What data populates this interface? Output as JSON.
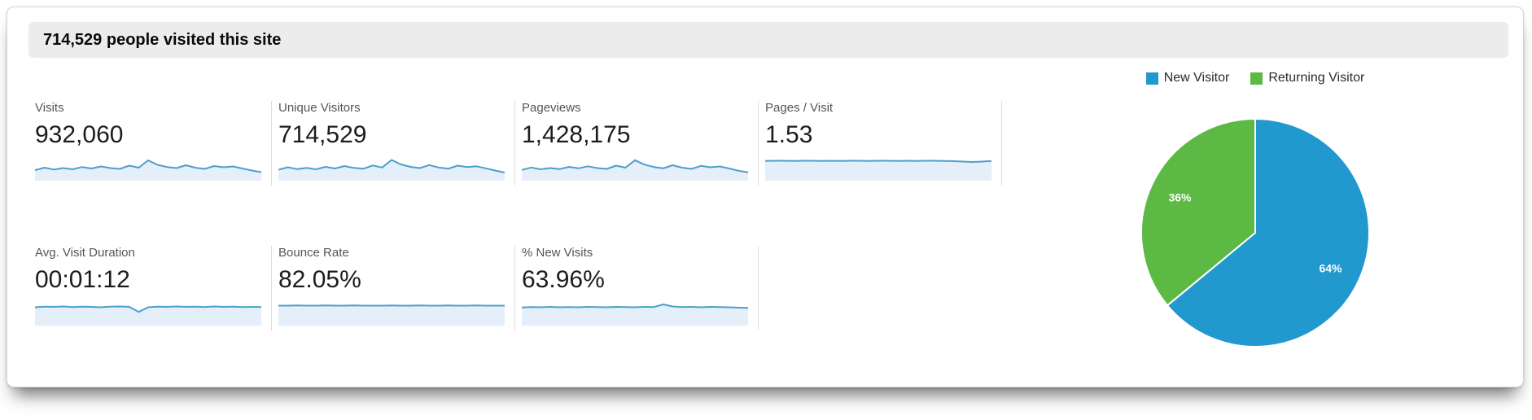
{
  "header": {
    "title": "714,529 people visited this site"
  },
  "legend": [
    {
      "label": "New Visitor",
      "color": "#2199CE"
    },
    {
      "label": "Returning Visitor",
      "color": "#5BB944"
    }
  ],
  "metrics": {
    "rows": [
      [
        {
          "label": "Visits",
          "value": "932,060"
        },
        {
          "label": "Unique Visitors",
          "value": "714,529"
        },
        {
          "label": "Pageviews",
          "value": "1,428,175"
        },
        {
          "label": "Pages / Visit",
          "value": "1.53"
        }
      ],
      [
        {
          "label": "Avg. Visit Duration",
          "value": "00:01:12"
        },
        {
          "label": "Bounce Rate",
          "value": "82.05%"
        },
        {
          "label": "% New Visits",
          "value": "63.96%"
        }
      ]
    ]
  },
  "chart_data": [
    {
      "type": "pie",
      "title": "New vs Returning Visitors",
      "labels": [
        "New Visitor",
        "Returning Visitor"
      ],
      "values": [
        64,
        36
      ],
      "data_labels": [
        "64%",
        "36%"
      ],
      "colors": [
        "#2199CE",
        "#5BB944"
      ],
      "legend_position": "top",
      "start_angle": "12 o'clock, clockwise",
      "slice_border_color": "#ffffff"
    },
    {
      "type": "area",
      "title": "Metric sparklines (unlabeled mini trend charts, values normalized 0-1)",
      "line_color": "#4E9FCC",
      "fill_color": "#E4EFF9",
      "grid": false,
      "series": [
        {
          "name": "Visits",
          "values": [
            0.4,
            0.52,
            0.43,
            0.5,
            0.44,
            0.55,
            0.48,
            0.58,
            0.5,
            0.46,
            0.62,
            0.52,
            0.88,
            0.66,
            0.55,
            0.5,
            0.64,
            0.52,
            0.46,
            0.6,
            0.54,
            0.58,
            0.48,
            0.38,
            0.3
          ]
        },
        {
          "name": "Unique Visitors",
          "values": [
            0.42,
            0.54,
            0.45,
            0.51,
            0.44,
            0.56,
            0.48,
            0.6,
            0.51,
            0.47,
            0.63,
            0.53,
            0.9,
            0.68,
            0.56,
            0.5,
            0.65,
            0.53,
            0.47,
            0.62,
            0.55,
            0.59,
            0.49,
            0.38,
            0.28
          ]
        },
        {
          "name": "Pageviews",
          "values": [
            0.41,
            0.53,
            0.44,
            0.5,
            0.45,
            0.56,
            0.49,
            0.59,
            0.5,
            0.46,
            0.62,
            0.52,
            0.89,
            0.67,
            0.55,
            0.49,
            0.64,
            0.52,
            0.46,
            0.61,
            0.54,
            0.58,
            0.48,
            0.37,
            0.29
          ]
        },
        {
          "name": "Pages / Visit",
          "values": [
            0.85,
            0.86,
            0.86,
            0.85,
            0.86,
            0.86,
            0.85,
            0.86,
            0.85,
            0.86,
            0.86,
            0.85,
            0.86,
            0.86,
            0.85,
            0.86,
            0.85,
            0.86,
            0.86,
            0.85,
            0.84,
            0.82,
            0.8,
            0.82,
            0.85
          ]
        },
        {
          "name": "Avg. Visit Duration",
          "values": [
            0.78,
            0.81,
            0.8,
            0.82,
            0.79,
            0.81,
            0.8,
            0.78,
            0.81,
            0.82,
            0.8,
            0.55,
            0.78,
            0.81,
            0.8,
            0.82,
            0.8,
            0.81,
            0.79,
            0.82,
            0.8,
            0.81,
            0.79,
            0.8,
            0.79
          ]
        },
        {
          "name": "Bounce Rate",
          "values": [
            0.86,
            0.86,
            0.87,
            0.86,
            0.86,
            0.87,
            0.86,
            0.86,
            0.87,
            0.86,
            0.86,
            0.86,
            0.87,
            0.86,
            0.86,
            0.87,
            0.86,
            0.86,
            0.87,
            0.86,
            0.86,
            0.87,
            0.86,
            0.86,
            0.86
          ]
        },
        {
          "name": "% New Visits",
          "values": [
            0.77,
            0.79,
            0.78,
            0.8,
            0.78,
            0.79,
            0.78,
            0.8,
            0.79,
            0.78,
            0.8,
            0.79,
            0.78,
            0.8,
            0.79,
            0.92,
            0.82,
            0.79,
            0.8,
            0.78,
            0.8,
            0.79,
            0.78,
            0.76,
            0.75
          ]
        }
      ]
    }
  ]
}
